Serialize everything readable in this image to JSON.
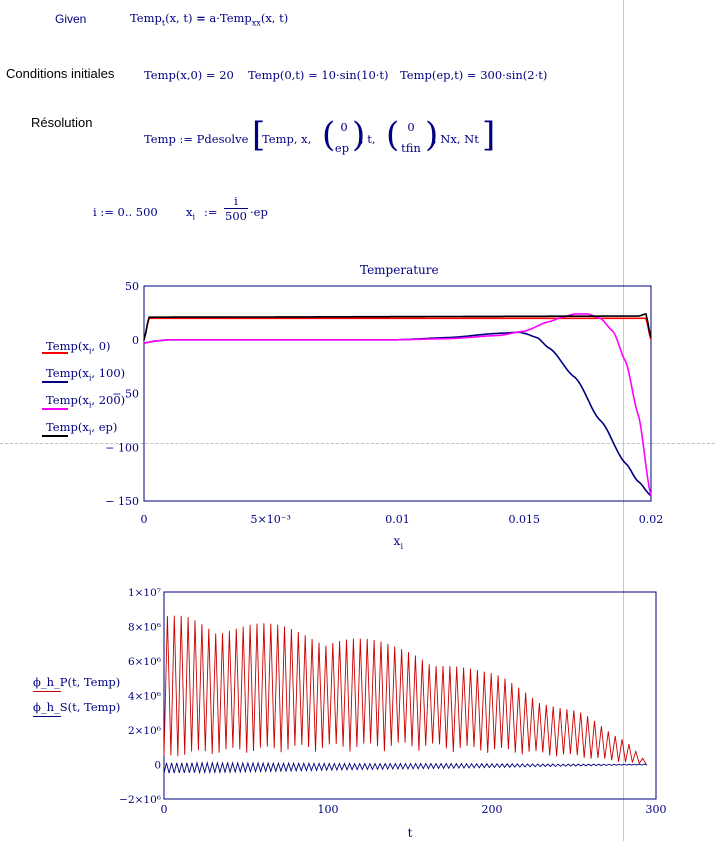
{
  "given_label": "Given",
  "equation": "Temp_t(x,t) = a·Temp_xx(x,t)",
  "conditions_label": "Conditions initiales",
  "cond1": "Temp(x,0) = 20",
  "cond2": "Temp(0,t) = 10·sin(10·t)",
  "cond3": "Temp(ep,t) = 300·sin(2·t)",
  "resolution_label": "Résolution",
  "pdesolve_lhs": "Temp := Pdesolve",
  "pdesolve_args": {
    "a": "Temp, x,",
    "v1_top": "0",
    "v1_bot": "ep",
    "b": ", t,",
    "v2_top": "0",
    "v2_bot": "tfin",
    "c": ", Nx, Nt"
  },
  "range_def": "i := 0.. 500",
  "x_def_lhs": "x",
  "x_def_sub": "i",
  "x_def_frac_num": "i",
  "x_def_frac_den": "500",
  "x_def_tail": "·ep",
  "chart_data": [
    {
      "type": "line",
      "title": "Temperature",
      "xlabel": "x",
      "xlabel_sub": "i",
      "xlim": [
        0,
        0.02
      ],
      "ylim": [
        -150,
        50
      ],
      "xticks": [
        "0",
        "5×10⁻³",
        "0.01",
        "0.015",
        "0.02"
      ],
      "yticks": [
        "50",
        "0",
        "− 50",
        "− 100",
        "− 150"
      ],
      "legend": [
        {
          "label": "Temp(x_i, 0)",
          "color": "#ff0000"
        },
        {
          "label": "Temp(x_i, 100)",
          "color": "#000080"
        },
        {
          "label": "Temp(x_i, 200)",
          "color": "#ff00ff"
        },
        {
          "label": "Temp(x_i, ep)",
          "color": "#000000"
        }
      ],
      "series": [
        {
          "name": "Temp(x_i, 0)",
          "color": "#ff0000",
          "x": [
            0,
            0.0002,
            0.0198,
            0.02
          ],
          "y": [
            0,
            20,
            20,
            0
          ]
        },
        {
          "name": "Temp(x_i, 100)",
          "color": "#000080",
          "x": [
            0,
            0.0005,
            0.001,
            0.005,
            0.01,
            0.012,
            0.014,
            0.0148,
            0.015,
            0.0155,
            0.016,
            0.017,
            0.018,
            0.019,
            0.0195,
            0.02
          ],
          "y": [
            -3,
            -1,
            0,
            0,
            0,
            2,
            6,
            7,
            6,
            2,
            -8,
            -35,
            -75,
            -115,
            -132,
            -145
          ]
        },
        {
          "name": "Temp(x_i, 200)",
          "color": "#ff00ff",
          "x": [
            0,
            0.0005,
            0.001,
            0.005,
            0.01,
            0.012,
            0.014,
            0.015,
            0.016,
            0.0165,
            0.017,
            0.0175,
            0.018,
            0.0185,
            0.019,
            0.0195,
            0.02
          ],
          "y": [
            -3,
            -1,
            0,
            0,
            0,
            1,
            4,
            8,
            17,
            21,
            24,
            24,
            20,
            8,
            -20,
            -70,
            -145
          ]
        },
        {
          "name": "Temp(x_i, ep)",
          "color": "#000000",
          "x": [
            0,
            0.0002,
            0.0195,
            0.0198,
            0.02
          ],
          "y": [
            0,
            21,
            22,
            24,
            2
          ]
        }
      ]
    },
    {
      "type": "line",
      "title": "",
      "xlabel": "t",
      "xlim": [
        0,
        300
      ],
      "ylim": [
        -2000000,
        10000000
      ],
      "xticks": [
        "0",
        "100",
        "200",
        "300"
      ],
      "yticks": [
        "1×10⁷",
        "8×10⁶",
        "6×10⁶",
        "4×10⁶",
        "2×10⁶",
        "0",
        "−2×10⁶"
      ],
      "legend": [
        {
          "label": "ϕ_h_P(t, Temp)",
          "color": "#cc0000"
        },
        {
          "label": "ϕ_h_S(t, Temp)",
          "color": "#000080"
        }
      ],
      "series": [
        {
          "name": "ϕ_h_P(t, Temp)",
          "color": "#cc0000",
          "envelope_t": [
            0,
            15,
            50,
            100,
            150,
            200,
            250,
            280,
            295
          ],
          "upper": [
            8600000,
            8800000,
            8300000,
            7800000,
            6800000,
            5300000,
            3200000,
            1500000,
            200000
          ],
          "lower": [
            500000,
            800000,
            1000000,
            1200000,
            1300000,
            1000000,
            600000,
            200000,
            0
          ],
          "oscillation_period": 4.2
        },
        {
          "name": "ϕ_h_S(t, Temp)",
          "color": "#000080",
          "mean": -200000,
          "amplitude_t": [
            0,
            150,
            295
          ],
          "amplitude": [
            300000,
            150000,
            20000
          ],
          "oscillation_period": 3.1
        }
      ]
    }
  ]
}
